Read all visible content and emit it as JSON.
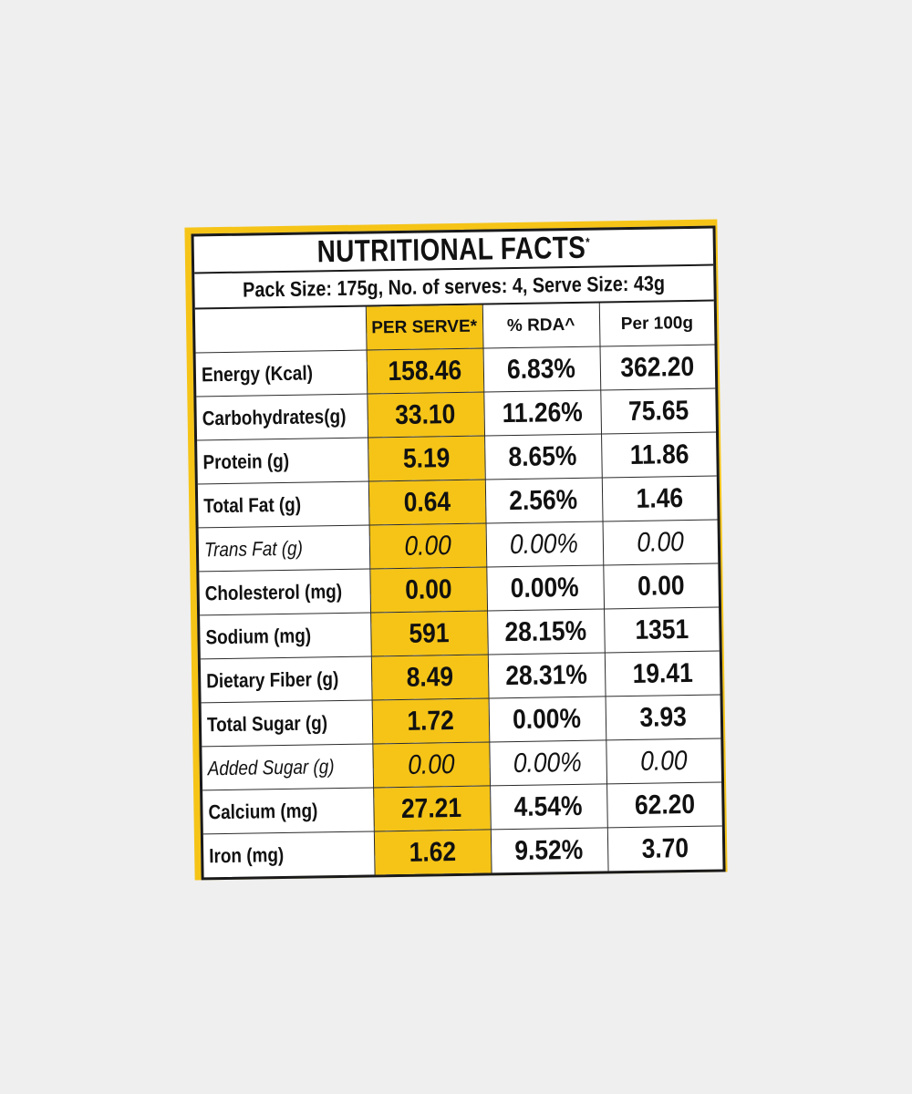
{
  "label": {
    "title": "NUTRITIONAL FACTS",
    "title_mark": "*",
    "pack_info": "Pack Size: 175g, No. of serves: 4, Serve Size: 43g",
    "columns": [
      "PER SERVE*",
      "% RDA^",
      "Per 100g"
    ],
    "highlight_color": "#f5c417",
    "rows": [
      {
        "name": "Energy (Kcal)",
        "per_serve": "158.46",
        "rda": "6.83%",
        "per_100g": "362.20"
      },
      {
        "name": "Carbohydrates(g)",
        "per_serve": "33.10",
        "rda": "11.26%",
        "per_100g": "75.65"
      },
      {
        "name": "Protein (g)",
        "per_serve": "5.19",
        "rda": "8.65%",
        "per_100g": "11.86"
      },
      {
        "name": "Total Fat (g)",
        "per_serve": "0.64",
        "rda": "2.56%",
        "per_100g": "1.46"
      },
      {
        "name": "Trans Fat (g)",
        "per_serve": "0.00",
        "rda": "0.00%",
        "per_100g": "0.00"
      },
      {
        "name": "Cholesterol (mg)",
        "per_serve": "0.00",
        "rda": "0.00%",
        "per_100g": "0.00"
      },
      {
        "name": "Sodium (mg)",
        "per_serve": "591",
        "rda": "28.15%",
        "per_100g": "1351"
      },
      {
        "name": "Dietary Fiber (g)",
        "per_serve": "8.49",
        "rda": "28.31%",
        "per_100g": "19.41"
      },
      {
        "name": "Total Sugar (g)",
        "per_serve": "1.72",
        "rda": "0.00%",
        "per_100g": "3.93"
      },
      {
        "name": "Added Sugar (g)",
        "per_serve": "0.00",
        "rda": "0.00%",
        "per_100g": "0.00"
      },
      {
        "name": "Calcium (mg)",
        "per_serve": "27.21",
        "rda": "4.54%",
        "per_100g": "62.20"
      },
      {
        "name": "Iron (mg)",
        "per_serve": "1.62",
        "rda": "9.52%",
        "per_100g": "3.70"
      }
    ]
  }
}
